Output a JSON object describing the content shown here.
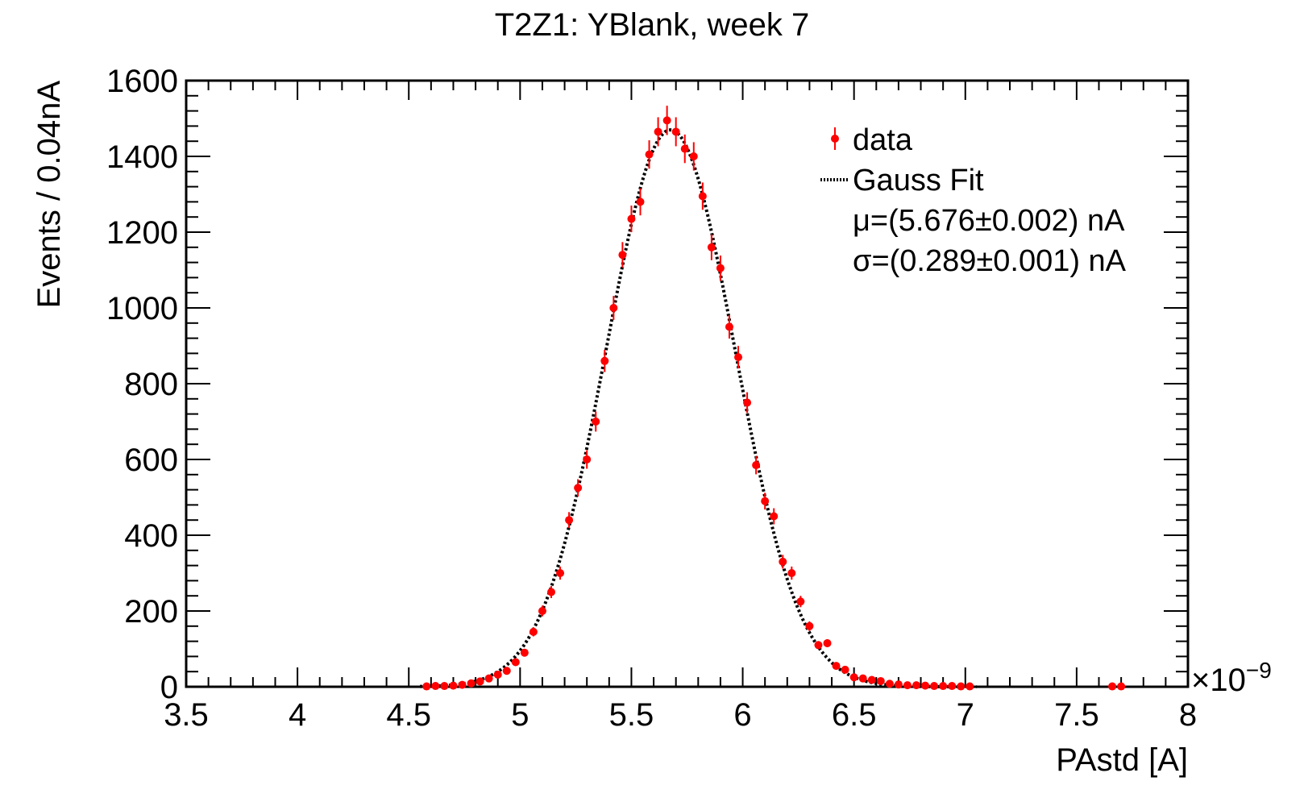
{
  "chart_data": {
    "type": "scatter",
    "title": "T2Z1: YBlank, week 7",
    "xlabel": "PAstd [A]",
    "ylabel": "Events / 0.04nA",
    "x_exponent_label": "×10",
    "x_exponent_power": "−9",
    "xlim": [
      3.5,
      8.0
    ],
    "ylim": [
      0,
      1600
    ],
    "x_ticks": [
      {
        "value": 3.5,
        "label": "3.5"
      },
      {
        "value": 4.0,
        "label": "4"
      },
      {
        "value": 4.5,
        "label": "4.5"
      },
      {
        "value": 5.0,
        "label": "5"
      },
      {
        "value": 5.5,
        "label": "5.5"
      },
      {
        "value": 6.0,
        "label": "6"
      },
      {
        "value": 6.5,
        "label": "6.5"
      },
      {
        "value": 7.0,
        "label": "7"
      },
      {
        "value": 7.5,
        "label": "7.5"
      },
      {
        "value": 8.0,
        "label": "8"
      }
    ],
    "y_ticks": [
      {
        "value": 0,
        "label": "0"
      },
      {
        "value": 200,
        "label": "200"
      },
      {
        "value": 400,
        "label": "400"
      },
      {
        "value": 600,
        "label": "600"
      },
      {
        "value": 800,
        "label": "800"
      },
      {
        "value": 1000,
        "label": "1000"
      },
      {
        "value": 1200,
        "label": "1200"
      },
      {
        "value": 1400,
        "label": "1400"
      },
      {
        "value": 1600,
        "label": "1600"
      }
    ],
    "grid": false,
    "legend": {
      "position": "top-right",
      "entries": [
        {
          "label": "data",
          "kind": "marker",
          "color": "#ff0000"
        },
        {
          "label": "Gauss Fit",
          "kind": "dotted-line",
          "color": "#000000"
        }
      ],
      "annotations": [
        "μ=(5.676±0.002) nA",
        "σ=(0.289±0.001) nA"
      ]
    },
    "colors": {
      "data": "#ff0000",
      "fit": "#000000",
      "frame": "#000000"
    },
    "fit": {
      "mu": 5.676,
      "sigma": 0.289,
      "amplitude": 1470
    },
    "series": [
      {
        "name": "data",
        "points": [
          [
            4.58,
            1
          ],
          [
            4.62,
            2
          ],
          [
            4.66,
            2
          ],
          [
            4.7,
            3
          ],
          [
            4.74,
            5
          ],
          [
            4.78,
            9
          ],
          [
            4.82,
            14
          ],
          [
            4.86,
            22
          ],
          [
            4.9,
            32
          ],
          [
            4.94,
            42
          ],
          [
            4.98,
            65
          ],
          [
            5.02,
            90
          ],
          [
            5.06,
            145
          ],
          [
            5.1,
            200
          ],
          [
            5.14,
            250
          ],
          [
            5.18,
            300
          ],
          [
            5.22,
            440
          ],
          [
            5.26,
            525
          ],
          [
            5.3,
            600
          ],
          [
            5.34,
            700
          ],
          [
            5.38,
            860
          ],
          [
            5.42,
            1000
          ],
          [
            5.46,
            1140
          ],
          [
            5.5,
            1235
          ],
          [
            5.54,
            1280
          ],
          [
            5.58,
            1405
          ],
          [
            5.62,
            1465
          ],
          [
            5.66,
            1495
          ],
          [
            5.7,
            1465
          ],
          [
            5.74,
            1420
          ],
          [
            5.78,
            1400
          ],
          [
            5.82,
            1295
          ],
          [
            5.86,
            1160
          ],
          [
            5.9,
            1105
          ],
          [
            5.94,
            950
          ],
          [
            5.98,
            870
          ],
          [
            6.02,
            750
          ],
          [
            6.06,
            585
          ],
          [
            6.1,
            490
          ],
          [
            6.14,
            450
          ],
          [
            6.18,
            330
          ],
          [
            6.22,
            300
          ],
          [
            6.26,
            225
          ],
          [
            6.3,
            160
          ],
          [
            6.34,
            110
          ],
          [
            6.38,
            115
          ],
          [
            6.42,
            55
          ],
          [
            6.46,
            45
          ],
          [
            6.5,
            25
          ],
          [
            6.54,
            22
          ],
          [
            6.58,
            18
          ],
          [
            6.62,
            15
          ],
          [
            6.66,
            8
          ],
          [
            6.7,
            6
          ],
          [
            6.74,
            4
          ],
          [
            6.78,
            4
          ],
          [
            6.82,
            3
          ],
          [
            6.86,
            2
          ],
          [
            6.9,
            2
          ],
          [
            6.94,
            2
          ],
          [
            6.98,
            1
          ],
          [
            7.02,
            1
          ],
          [
            7.66,
            1
          ],
          [
            7.7,
            1
          ]
        ]
      }
    ]
  }
}
